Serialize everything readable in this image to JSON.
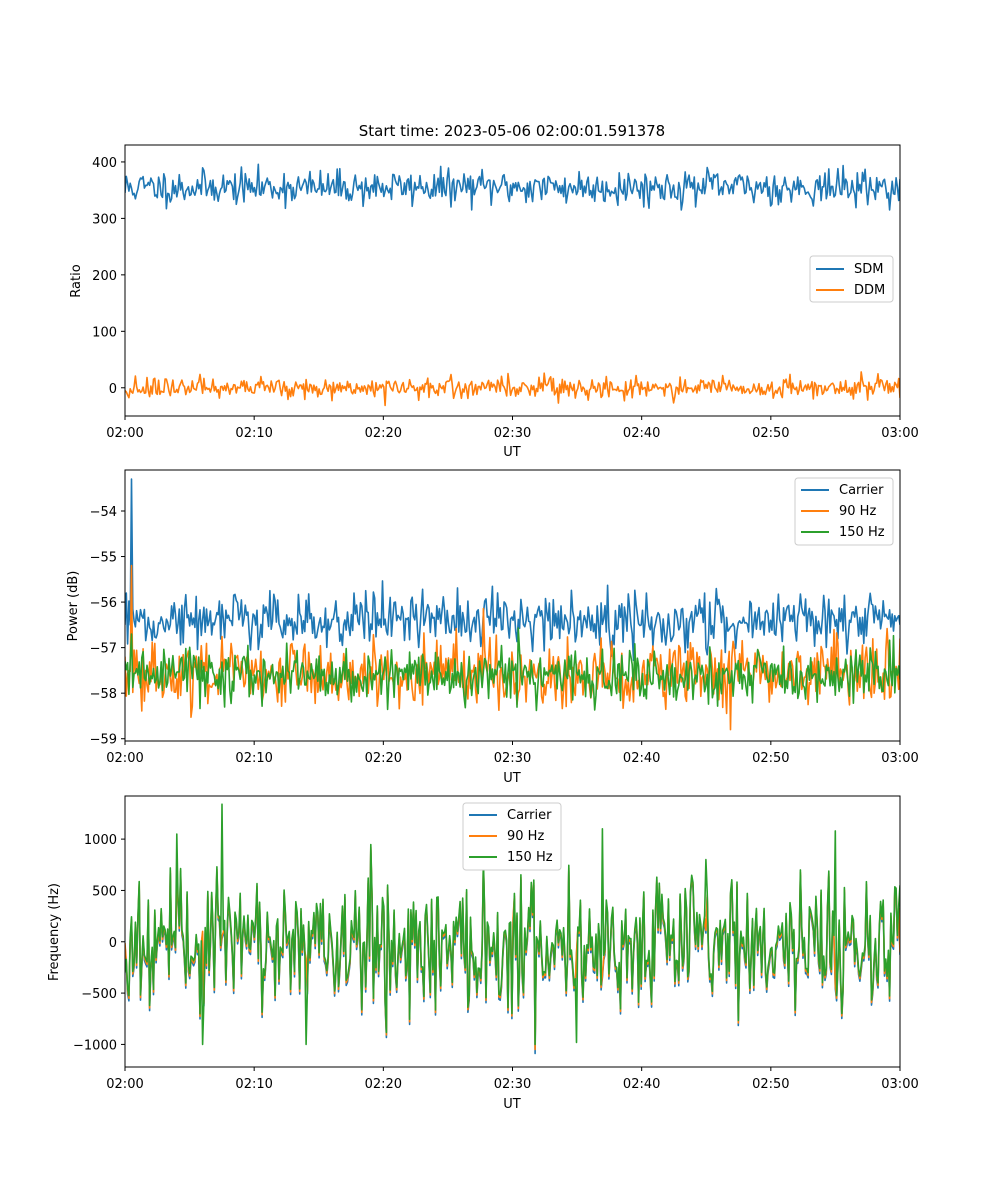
{
  "figure_title": "Start time: 2023-05-06 02:00:01.591378",
  "colors": {
    "blue": "#1f77b4",
    "orange": "#ff7f0e",
    "green": "#2ca02c"
  },
  "chart_data": [
    {
      "type": "line",
      "title": "Start time: 2023-05-06 02:00:01.591378",
      "xlabel": "UT",
      "ylabel": "Ratio",
      "xticks": [
        "02:00",
        "02:10",
        "02:20",
        "02:30",
        "02:40",
        "02:50",
        "03:00"
      ],
      "xlim": [
        "02:00",
        "03:00"
      ],
      "ylim": [
        -50,
        430
      ],
      "yticks": [
        0,
        100,
        200,
        300,
        400
      ],
      "legend_position": "center-right",
      "series": [
        {
          "name": "SDM",
          "color": "#1f77b4",
          "mean": 355,
          "spread": 15,
          "min": 315,
          "max": 412,
          "x": [
            "02:00",
            "02:07",
            "02:15",
            "02:23",
            "02:30",
            "02:38",
            "02:45",
            "02:52",
            "03:00"
          ],
          "values": [
            345,
            355,
            352,
            356,
            362,
            354,
            358,
            352,
            370
          ]
        },
        {
          "name": "DDM",
          "color": "#ff7f0e",
          "mean": 0,
          "spread": 9,
          "min": -33,
          "max": 31,
          "x": [
            "02:00",
            "02:07",
            "02:15",
            "02:23",
            "02:30",
            "02:38",
            "02:45",
            "02:52",
            "03:00"
          ],
          "values": [
            -5,
            2,
            -2,
            5,
            0,
            -3,
            6,
            1,
            -18
          ]
        }
      ]
    },
    {
      "type": "line",
      "xlabel": "UT",
      "ylabel": "Power (dB)",
      "xticks": [
        "02:00",
        "02:10",
        "02:20",
        "02:30",
        "02:40",
        "02:50",
        "03:00"
      ],
      "xlim": [
        "02:00",
        "03:00"
      ],
      "ylim": [
        -59.05,
        -53.1
      ],
      "yticks": [
        -54,
        -55,
        -56,
        -57,
        -58,
        -59
      ],
      "legend_position": "upper-right",
      "series": [
        {
          "name": "Carrier",
          "color": "#1f77b4",
          "mean": -56.4,
          "spread": 0.3,
          "min": -57.3,
          "max": -53.3,
          "x": [
            "02:00",
            "02:00:30",
            "02:01",
            "02:10",
            "02:20",
            "02:30",
            "02:40",
            "02:50",
            "03:00"
          ],
          "values": [
            -56.5,
            -53.3,
            -56.4,
            -56.3,
            -56.5,
            -56.4,
            -56.5,
            -56.4,
            -56.5
          ]
        },
        {
          "name": "90 Hz",
          "color": "#ff7f0e",
          "mean": -57.6,
          "spread": 0.35,
          "min": -58.8,
          "max": -55.2,
          "x": [
            "02:00",
            "02:00:30",
            "02:01",
            "02:10",
            "02:20",
            "02:30",
            "02:40",
            "02:50",
            "03:00"
          ],
          "values": [
            -57.2,
            -55.2,
            -57.6,
            -57.5,
            -57.7,
            -57.4,
            -57.8,
            -57.5,
            -56.8
          ]
        },
        {
          "name": "150 Hz",
          "color": "#2ca02c",
          "mean": -57.6,
          "spread": 0.3,
          "min": -58.7,
          "max": -56.5,
          "x": [
            "02:00",
            "02:00:30",
            "02:01",
            "02:10",
            "02:20",
            "02:30",
            "02:40",
            "02:50",
            "03:00"
          ],
          "values": [
            -57.3,
            -56.7,
            -57.6,
            -57.6,
            -57.5,
            -57.5,
            -57.9,
            -57.4,
            -57.7
          ]
        }
      ]
    },
    {
      "type": "line",
      "xlabel": "UT",
      "ylabel": "Frequency (Hz)",
      "xticks": [
        "02:00",
        "02:10",
        "02:20",
        "02:30",
        "02:40",
        "02:50",
        "03:00"
      ],
      "xlim": [
        "02:00",
        "03:00"
      ],
      "ylim": [
        -1220,
        1420
      ],
      "yticks": [
        1000,
        500,
        0,
        -500,
        -1000
      ],
      "legend_position": "upper-center",
      "series": [
        {
          "name": "Carrier",
          "color": "#1f77b4",
          "mean": -50,
          "spread": 320,
          "min": -1100,
          "max": 1300
        },
        {
          "name": "90 Hz",
          "color": "#ff7f0e",
          "mean": -25,
          "spread": 320,
          "min": -1050,
          "max": 1330
        },
        {
          "name": "150 Hz",
          "color": "#2ca02c",
          "mean": 0,
          "spread": 320,
          "min": -1000,
          "max": 1340,
          "x": [
            "02:00",
            "02:04",
            "02:06",
            "02:07:30",
            "02:14",
            "02:30",
            "02:35",
            "02:37",
            "02:45",
            "02:55",
            "03:00"
          ],
          "values": [
            -300,
            1050,
            -1000,
            1340,
            -1050,
            0,
            -980,
            1100,
            800,
            1080,
            550
          ]
        }
      ]
    }
  ]
}
